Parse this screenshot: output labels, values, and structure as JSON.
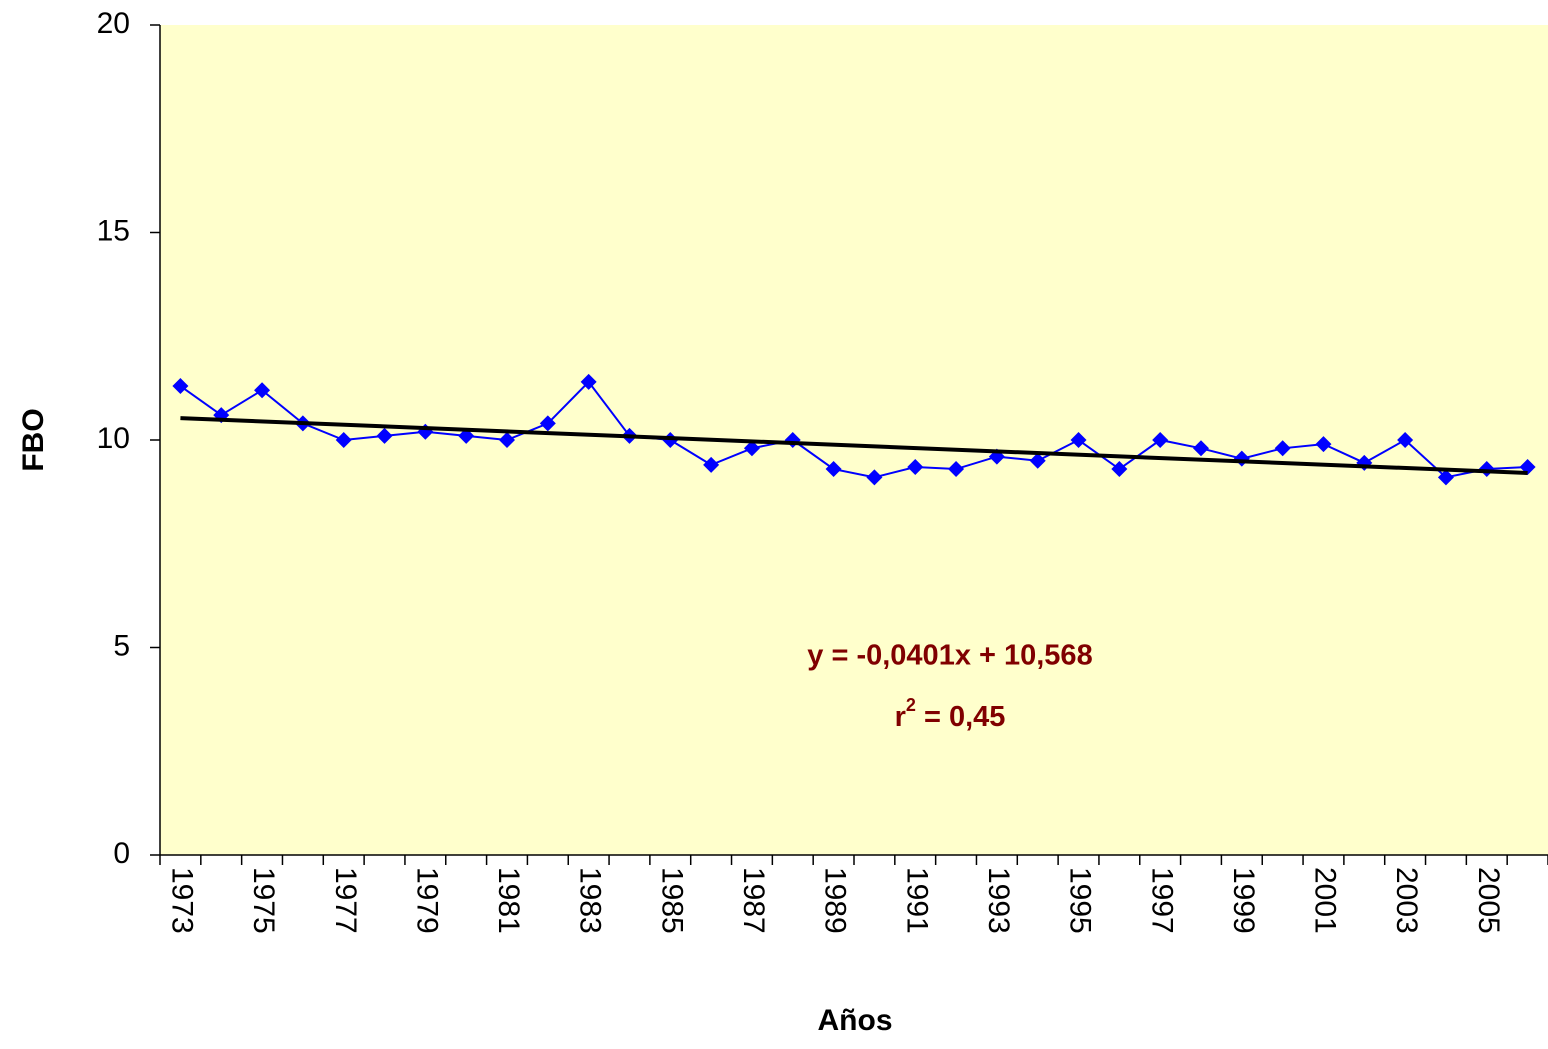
{
  "chart_data": {
    "type": "line",
    "x_label": "Años",
    "y_label": "FBO",
    "categories": [
      "1973",
      null,
      "1975",
      null,
      "1977",
      null,
      "1979",
      null,
      "1981",
      null,
      "1983",
      null,
      "1985",
      null,
      "1987",
      null,
      "1989",
      null,
      "1991",
      null,
      "1993",
      null,
      "1995",
      null,
      "1997",
      null,
      "1999",
      null,
      "2001",
      null,
      "2003",
      null,
      "2005",
      null
    ],
    "series": [
      {
        "color": "#0000ff",
        "values": [
          11.3,
          10.6,
          11.2,
          10.4,
          10.0,
          10.1,
          10.2,
          10.1,
          10.0,
          10.4,
          11.4,
          10.1,
          10.0,
          9.4,
          9.8,
          10.0,
          9.3,
          9.1,
          9.35,
          9.3,
          9.6,
          9.5,
          10.0,
          9.3,
          10.0,
          9.8,
          9.55,
          9.8,
          9.9,
          9.45,
          10.0,
          9.1,
          9.3,
          9.35
        ]
      }
    ],
    "trendline": {
      "slope": -0.0401,
      "intercept": 10.568,
      "color": "#000000"
    },
    "annotations": {
      "equation": "y = -0,0401x + 10,568",
      "r_squared": [
        "r",
        "2",
        " = 0,45"
      ],
      "color": "#800000"
    },
    "ylim": [
      0,
      20
    ],
    "yticks": [
      0,
      5,
      10,
      15,
      20
    ],
    "plot_background": "#ffffcc"
  }
}
